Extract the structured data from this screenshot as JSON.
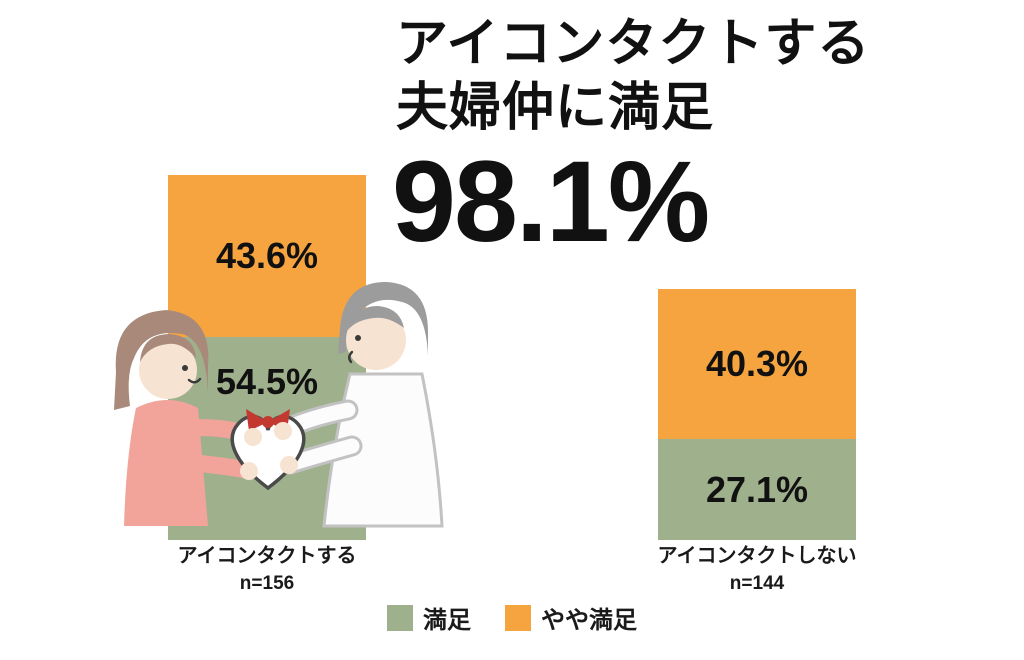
{
  "title": {
    "line1": "アイコンタクトする",
    "line2": "夫婦仲に満足",
    "big_number": "98.1%"
  },
  "chart_data": {
    "type": "bar",
    "subtype": "stacked-percentage-columns",
    "categories": [
      "アイコンタクトする",
      "アイコンタクトしない"
    ],
    "sample_sizes": [
      "n=156",
      "n=144"
    ],
    "series": [
      {
        "name": "満足",
        "color": "#9FB08C",
        "values": [
          54.5,
          27.1
        ],
        "labels": [
          "54.5%",
          "27.1%"
        ]
      },
      {
        "name": "やや満足",
        "color": "#F5A440",
        "values": [
          43.6,
          40.3
        ],
        "labels": [
          "43.6%",
          "40.3%"
        ]
      }
    ],
    "stack_order_top_to_bottom": [
      "やや満足",
      "満足"
    ],
    "annotation_total_satisfied": "98.1%",
    "ylim": [
      0,
      100
    ],
    "axes": "none",
    "legend_position": "bottom"
  },
  "illustration": {
    "name": "couple-exchanging-heart"
  },
  "colors": {
    "background": "#FFFFFF",
    "text": "#111111",
    "satisfied_green": "#9FB08C",
    "somewhat_satisfied_orange": "#F5A440"
  }
}
